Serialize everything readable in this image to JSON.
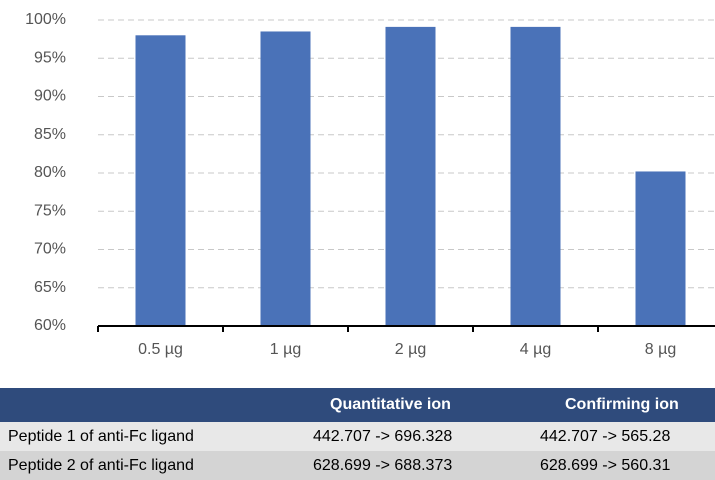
{
  "chart_data": {
    "type": "bar",
    "categories": [
      "0.5 µg",
      "1 µg",
      "2 µg",
      "4 µg",
      "8 µg"
    ],
    "values": [
      98,
      98.5,
      99.1,
      99.1,
      80.2
    ],
    "color": "#4a72b8",
    "ylim": [
      60,
      100
    ],
    "yticks": [
      {
        "value": 60,
        "label": "60%"
      },
      {
        "value": 65,
        "label": "65%"
      },
      {
        "value": 70,
        "label": "70%"
      },
      {
        "value": 75,
        "label": "75%"
      },
      {
        "value": 80,
        "label": "80%"
      },
      {
        "value": 85,
        "label": "85%"
      },
      {
        "value": 90,
        "label": "90%"
      },
      {
        "value": 95,
        "label": "95%"
      },
      {
        "value": 100,
        "label": "100%"
      }
    ],
    "grid": true
  },
  "table": {
    "columns": [
      "Quantitative ion",
      "Confirming ion"
    ],
    "rows": [
      [
        "Peptide 1 of anti-Fc ligand",
        "442.707 -> 696.328",
        "442.707 -> 565.28"
      ],
      [
        "Peptide 2 of anti-Fc ligand",
        "628.699 -> 688.373",
        "628.699 -> 560.31"
      ]
    ]
  }
}
